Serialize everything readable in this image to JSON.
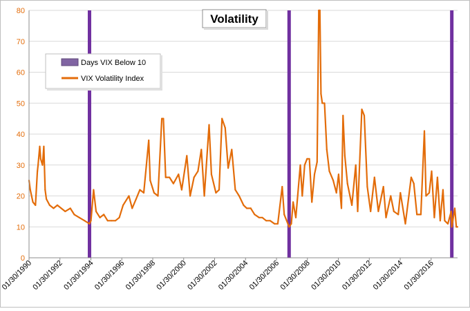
{
  "chart_data": {
    "type": "line",
    "title": "Volatility",
    "xlabel": "",
    "ylabel": "",
    "x_tick_labels": [
      "01/30/1990",
      "01/30/1992",
      "01/30/1994",
      "01/30/1996",
      "01/30/1998",
      "01/30/2000",
      "01/30/2002",
      "01/30/2004",
      "01/30/2006",
      "01/30/2008",
      "01/30/2010",
      "01/30/2012",
      "01/30/2014",
      "01/30/2016"
    ],
    "xlim": [
      "1990-01-30",
      "2017-10-15"
    ],
    "y_tick_labels": [
      "0",
      "10",
      "20",
      "30",
      "40",
      "50",
      "60",
      "70",
      "80"
    ],
    "ylim": [
      0,
      80
    ],
    "grid": "horizontal",
    "legend_position": "top-left",
    "series": [
      {
        "name": "Days VIX Below 10",
        "kind": "vertical_bands",
        "color": "#7030a0",
        "x": [
          "1993-12-28",
          "2006-11-24",
          "2017-06-01"
        ]
      },
      {
        "name": "VIX Volatility Index",
        "kind": "line",
        "color": "#e36c09",
        "points": [
          [
            "1990-01-30",
            25
          ],
          [
            "1990-03-01",
            22
          ],
          [
            "1990-05-01",
            18
          ],
          [
            "1990-07-01",
            17
          ],
          [
            "1990-08-15",
            28
          ],
          [
            "1990-09-01",
            30
          ],
          [
            "1990-10-10",
            36
          ],
          [
            "1990-11-01",
            32
          ],
          [
            "1990-12-15",
            30
          ],
          [
            "1991-01-15",
            36
          ],
          [
            "1991-02-15",
            22
          ],
          [
            "1991-03-15",
            19
          ],
          [
            "1991-06-01",
            17
          ],
          [
            "1991-09-01",
            16
          ],
          [
            "1991-12-01",
            17
          ],
          [
            "1992-03-01",
            16
          ],
          [
            "1992-06-01",
            15
          ],
          [
            "1992-10-01",
            16
          ],
          [
            "1993-01-01",
            14
          ],
          [
            "1993-05-01",
            13
          ],
          [
            "1993-09-01",
            12
          ],
          [
            "1993-12-28",
            11
          ],
          [
            "1994-02-01",
            12
          ],
          [
            "1994-04-04",
            22
          ],
          [
            "1994-06-01",
            15
          ],
          [
            "1994-09-01",
            13
          ],
          [
            "1994-12-01",
            14
          ],
          [
            "1995-03-01",
            12
          ],
          [
            "1995-06-01",
            12
          ],
          [
            "1995-09-01",
            12
          ],
          [
            "1995-12-01",
            13
          ],
          [
            "1996-03-01",
            17
          ],
          [
            "1996-07-15",
            20
          ],
          [
            "1996-10-01",
            16
          ],
          [
            "1997-01-01",
            19
          ],
          [
            "1997-04-01",
            22
          ],
          [
            "1997-07-01",
            21
          ],
          [
            "1997-10-27",
            38
          ],
          [
            "1997-12-01",
            25
          ],
          [
            "1998-03-01",
            21
          ],
          [
            "1998-06-01",
            20
          ],
          [
            "1998-08-31",
            45
          ],
          [
            "1998-10-08",
            45
          ],
          [
            "1998-12-01",
            26
          ],
          [
            "1999-03-01",
            26
          ],
          [
            "1999-06-01",
            24
          ],
          [
            "1999-10-01",
            27
          ],
          [
            "1999-12-15",
            22
          ],
          [
            "2000-04-14",
            33
          ],
          [
            "2000-07-01",
            20
          ],
          [
            "2000-10-01",
            26
          ],
          [
            "2001-01-01",
            28
          ],
          [
            "2001-03-22",
            35
          ],
          [
            "2001-06-01",
            20
          ],
          [
            "2001-09-21",
            43
          ],
          [
            "2001-11-15",
            27
          ],
          [
            "2002-03-01",
            21
          ],
          [
            "2002-05-15",
            22
          ],
          [
            "2002-07-24",
            45
          ],
          [
            "2002-10-07",
            42
          ],
          [
            "2002-12-15",
            29
          ],
          [
            "2003-03-11",
            35
          ],
          [
            "2003-06-01",
            22
          ],
          [
            "2003-09-01",
            20
          ],
          [
            "2003-12-15",
            17
          ],
          [
            "2004-03-01",
            16
          ],
          [
            "2004-06-01",
            16
          ],
          [
            "2004-09-01",
            14
          ],
          [
            "2004-12-15",
            13
          ],
          [
            "2005-03-01",
            13
          ],
          [
            "2005-06-01",
            12
          ],
          [
            "2005-09-01",
            12
          ],
          [
            "2005-12-15",
            11
          ],
          [
            "2006-03-01",
            11
          ],
          [
            "2006-06-14",
            23
          ],
          [
            "2006-08-01",
            14
          ],
          [
            "2006-11-24",
            10
          ],
          [
            "2007-01-15",
            11
          ],
          [
            "2007-02-27",
            18
          ],
          [
            "2007-05-01",
            13
          ],
          [
            "2007-08-16",
            30
          ],
          [
            "2007-10-01",
            20
          ],
          [
            "2007-11-26",
            30
          ],
          [
            "2008-01-22",
            32
          ],
          [
            "2008-03-17",
            32
          ],
          [
            "2008-05-15",
            18
          ],
          [
            "2008-07-15",
            27
          ],
          [
            "2008-09-15",
            31
          ],
          [
            "2008-10-24",
            80
          ],
          [
            "2008-11-20",
            81
          ],
          [
            "2008-12-15",
            53
          ],
          [
            "2009-01-15",
            50
          ],
          [
            "2009-03-09",
            50
          ],
          [
            "2009-05-01",
            35
          ],
          [
            "2009-07-01",
            28
          ],
          [
            "2009-10-01",
            25
          ],
          [
            "2009-12-15",
            21
          ],
          [
            "2010-02-05",
            27
          ],
          [
            "2010-04-12",
            16
          ],
          [
            "2010-05-20",
            46
          ],
          [
            "2010-07-01",
            33
          ],
          [
            "2010-09-01",
            24
          ],
          [
            "2010-12-15",
            17
          ],
          [
            "2011-03-16",
            30
          ],
          [
            "2011-05-01",
            15
          ],
          [
            "2011-08-08",
            48
          ],
          [
            "2011-10-03",
            46
          ],
          [
            "2011-12-15",
            23
          ],
          [
            "2012-03-01",
            15
          ],
          [
            "2012-06-01",
            26
          ],
          [
            "2012-09-01",
            15
          ],
          [
            "2012-12-28",
            23
          ],
          [
            "2013-03-01",
            13
          ],
          [
            "2013-06-20",
            20
          ],
          [
            "2013-09-01",
            15
          ],
          [
            "2013-12-15",
            14
          ],
          [
            "2014-02-03",
            21
          ],
          [
            "2014-06-01",
            11
          ],
          [
            "2014-10-15",
            26
          ],
          [
            "2014-12-16",
            24
          ],
          [
            "2015-03-01",
            14
          ],
          [
            "2015-06-01",
            14
          ],
          [
            "2015-08-24",
            41
          ],
          [
            "2015-10-01",
            20
          ],
          [
            "2015-12-15",
            21
          ],
          [
            "2016-02-11",
            28
          ],
          [
            "2016-04-15",
            13
          ],
          [
            "2016-06-27",
            26
          ],
          [
            "2016-09-01",
            12
          ],
          [
            "2016-11-04",
            22
          ],
          [
            "2016-12-15",
            12
          ],
          [
            "2017-03-01",
            11
          ],
          [
            "2017-05-18",
            15
          ],
          [
            "2017-06-01",
            10
          ],
          [
            "2017-08-11",
            16
          ],
          [
            "2017-09-15",
            10
          ],
          [
            "2017-10-15",
            10
          ]
        ]
      }
    ]
  }
}
